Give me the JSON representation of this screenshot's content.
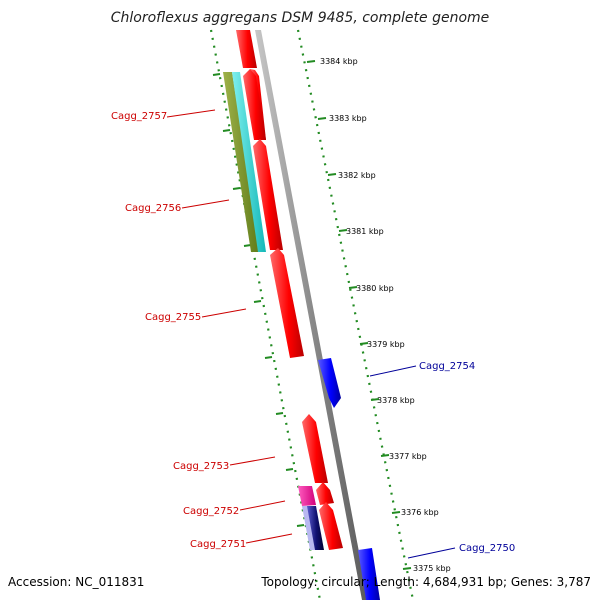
{
  "header": {
    "title": "Chloroflexus aggregans DSM 9485, complete genome"
  },
  "footer": {
    "accession": "Accession: NC_011831",
    "summary": "Topology: circular; Length: 4,684,931 bp; Genes: 3,787"
  },
  "colors": {
    "forward_label": "#cc0000",
    "reverse_label": "#000099",
    "cds_forward": "#ff0000",
    "cds_reverse": "#0000ff",
    "gc_skew_dots": "#228b22",
    "backbone": "#808080"
  },
  "position_ticks": [
    {
      "label": "3384 kbp"
    },
    {
      "label": "3383 kbp"
    },
    {
      "label": "3382 kbp"
    },
    {
      "label": "3381 kbp"
    },
    {
      "label": "3380 kbp"
    },
    {
      "label": "3379 kbp"
    },
    {
      "label": "3378 kbp"
    },
    {
      "label": "3377 kbp"
    },
    {
      "label": "3376 kbp"
    },
    {
      "label": "3375 kbp"
    }
  ],
  "gene_labels": [
    {
      "name": "Cagg_2757",
      "strand": "forward"
    },
    {
      "name": "Cagg_2756",
      "strand": "forward"
    },
    {
      "name": "Cagg_2755",
      "strand": "forward"
    },
    {
      "name": "Cagg_2754",
      "strand": "reverse"
    },
    {
      "name": "Cagg_2753",
      "strand": "forward"
    },
    {
      "name": "Cagg_2752",
      "strand": "forward"
    },
    {
      "name": "Cagg_2751",
      "strand": "forward"
    },
    {
      "name": "Cagg_2750",
      "strand": "reverse"
    }
  ]
}
